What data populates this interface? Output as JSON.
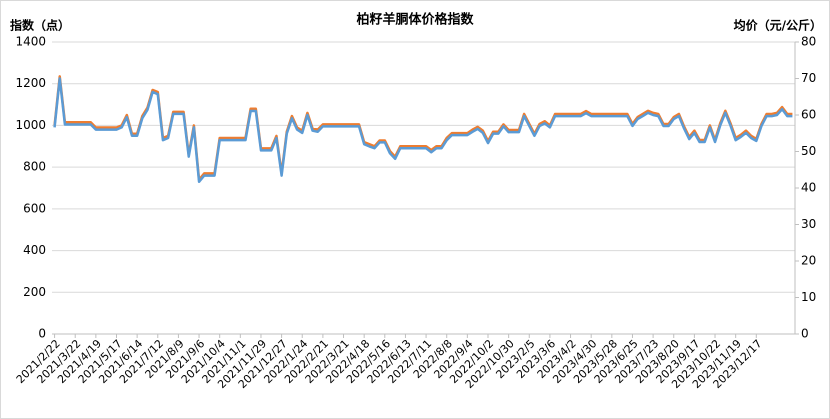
{
  "chart_data": {
    "type": "line",
    "title": "柏籽羊胴体价格指数",
    "y_label": "指数（点）",
    "y2_label": "均价（元/公斤）",
    "categories": [
      "2021/2/22",
      null,
      null,
      null,
      "2021/3/22",
      null,
      null,
      null,
      "2021/4/19",
      null,
      null,
      null,
      "2021/5/17",
      null,
      null,
      null,
      "2021/6/14",
      null,
      null,
      null,
      "2021/7/12",
      null,
      null,
      null,
      "2021/8/9",
      null,
      null,
      null,
      "2021/9/6",
      null,
      null,
      null,
      "2021/10/4",
      null,
      null,
      null,
      "2021/11/1",
      null,
      null,
      null,
      "2021/11/29",
      null,
      null,
      null,
      "2021/12/27",
      null,
      null,
      null,
      "2022/1/24",
      null,
      null,
      null,
      "2022/2/21",
      null,
      null,
      null,
      "2022/3/21",
      null,
      null,
      null,
      "2022/4/18",
      null,
      null,
      null,
      "2022/5/16",
      null,
      null,
      null,
      "2022/6/13",
      null,
      null,
      null,
      "2022/7/11",
      null,
      null,
      null,
      "2022/8/8",
      null,
      null,
      null,
      "2022/9/4",
      null,
      null,
      null,
      "2022/10/2",
      null,
      null,
      null,
      "2022/10/30",
      null,
      null,
      null,
      "2023/2/5",
      null,
      null,
      null,
      "2023/3/6",
      null,
      null,
      null,
      "2023/4/2",
      null,
      null,
      null,
      "2023/4/30",
      null,
      null,
      null,
      "2023/5/28",
      null,
      null,
      null,
      "2023/6/25",
      null,
      null,
      null,
      "2023/7/23",
      null,
      null,
      null,
      "2023/8/20",
      null,
      null,
      null,
      "2023/9/17",
      null,
      null,
      null,
      "2023/10/22",
      null,
      null,
      null,
      "2023/11/19",
      null,
      null,
      null,
      "2023/12/17",
      null,
      null,
      null,
      null,
      null,
      null,
      null
    ],
    "series": [
      {
        "color": "#ed7d31",
        "values": [
          1000,
          1235,
          1015,
          1015,
          1015,
          1015,
          1015,
          1015,
          990,
          990,
          990,
          990,
          990,
          1000,
          1050,
          960,
          960,
          1045,
          1085,
          1170,
          1160,
          940,
          950,
          1065,
          1065,
          1065,
          860,
          1000,
          740,
          770,
          770,
          770,
          940,
          940,
          940,
          940,
          940,
          940,
          1080,
          1080,
          890,
          890,
          890,
          950,
          770,
          970,
          1045,
          990,
          975,
          1060,
          985,
          980,
          1005,
          1005,
          1005,
          1005,
          1005,
          1005,
          1005,
          1005,
          920,
          910,
          900,
          928,
          928,
          877,
          850,
          900,
          900,
          900,
          900,
          900,
          900,
          882,
          900,
          900,
          940,
          963,
          963,
          963,
          963,
          980,
          993,
          975,
          925,
          970,
          970,
          1005,
          978,
          978,
          978,
          1055,
          1007,
          960,
          1007,
          1020,
          1000,
          1055,
          1055,
          1055,
          1055,
          1055,
          1055,
          1069,
          1055,
          1055,
          1055,
          1055,
          1055,
          1055,
          1055,
          1055,
          1007,
          1040,
          1055,
          1070,
          1060,
          1055,
          1007,
          1007,
          1040,
          1055,
          995,
          945,
          975,
          930,
          930,
          1000,
          930,
          1010,
          1070,
          1010,
          940,
          955,
          975,
          950,
          935,
          1007,
          1055,
          1055,
          1060,
          1088,
          1055,
          1055
        ]
      },
      {
        "color": "#5b9bd5",
        "axis": "y2",
        "values": [
          56.6,
          70.0,
          57.4,
          57.4,
          57.4,
          57.4,
          57.4,
          57.4,
          56.0,
          56.0,
          56.0,
          56.0,
          56.0,
          56.6,
          59.4,
          54.3,
          54.3,
          59.1,
          61.4,
          66.3,
          65.7,
          53.1,
          53.7,
          60.3,
          60.3,
          60.3,
          48.6,
          56.6,
          41.7,
          43.4,
          43.4,
          43.4,
          53.1,
          53.1,
          53.1,
          53.1,
          53.1,
          53.1,
          61.1,
          61.1,
          50.3,
          50.3,
          50.3,
          53.7,
          43.4,
          54.9,
          59.1,
          56.0,
          55.1,
          60.0,
          55.7,
          55.4,
          56.9,
          56.9,
          56.9,
          56.9,
          56.9,
          56.9,
          56.9,
          56.9,
          52.0,
          51.4,
          50.9,
          52.5,
          52.5,
          49.5,
          48.0,
          50.9,
          50.9,
          50.9,
          50.9,
          50.9,
          50.9,
          49.8,
          50.9,
          50.9,
          53.1,
          54.5,
          54.5,
          54.5,
          54.5,
          55.4,
          56.2,
          55.1,
          52.3,
          54.9,
          54.9,
          56.9,
          55.3,
          55.3,
          55.3,
          59.7,
          57.0,
          54.3,
          57.0,
          57.7,
          56.6,
          59.7,
          59.7,
          59.7,
          59.7,
          59.7,
          59.7,
          60.5,
          59.7,
          59.7,
          59.7,
          59.7,
          59.7,
          59.7,
          59.7,
          59.7,
          57.0,
          58.9,
          59.7,
          60.6,
          60.0,
          59.7,
          57.0,
          57.0,
          58.9,
          59.7,
          56.3,
          53.4,
          55.1,
          52.6,
          52.6,
          56.6,
          52.6,
          57.1,
          60.6,
          57.1,
          53.1,
          54.0,
          55.1,
          53.7,
          52.9,
          57.0,
          59.7,
          59.7,
          60.0,
          61.6,
          59.7,
          59.7
        ]
      }
    ],
    "ylim": [
      0,
      1400
    ],
    "yticks": [
      0,
      200,
      400,
      600,
      800,
      1000,
      1200,
      1400
    ],
    "y2lim": [
      0,
      80
    ],
    "y2ticks": [
      0,
      10,
      20,
      30,
      40,
      50,
      60,
      70,
      80
    ],
    "grid": true
  }
}
